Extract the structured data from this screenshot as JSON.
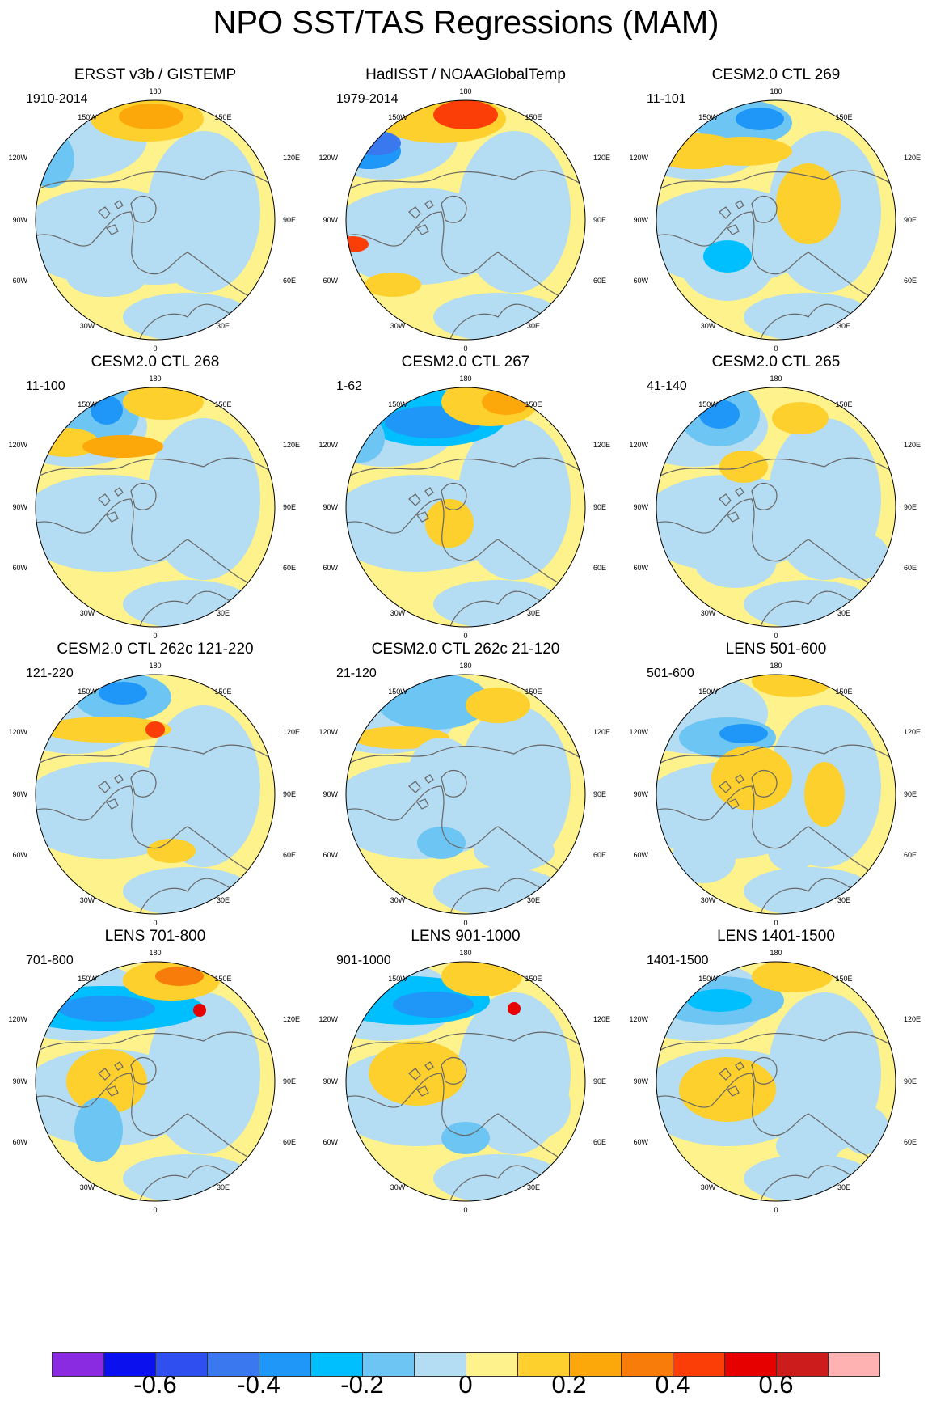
{
  "title": "NPO SST/TAS Regressions (MAM)",
  "longitude_labels": {
    "top": "180",
    "upper_left": "150W",
    "upper_right": "150E",
    "left_upper": "120W",
    "right_upper": "120E",
    "left": "90W",
    "right": "90E",
    "left_lower": "60W",
    "right_lower": "60E",
    "lower_left": "30W",
    "lower_right": "30E",
    "bottom": "0"
  },
  "panels": [
    {
      "title": "ERSST v3b / GISTEMP",
      "period": "1910-2014"
    },
    {
      "title": "HadISST / NOAAGlobalTemp",
      "period": "1979-2014"
    },
    {
      "title": "CESM2.0 CTL 269",
      "period": "11-101"
    },
    {
      "title": "CESM2.0 CTL 268",
      "period": "11-100"
    },
    {
      "title": "CESM2.0 CTL 267",
      "period": "1-62"
    },
    {
      "title": "CESM2.0 CTL 265",
      "period": "41-140"
    },
    {
      "title": "CESM2.0 CTL 262c 121-220",
      "period": "121-220"
    },
    {
      "title": "CESM2.0 CTL 262c 21-120",
      "period": "21-120"
    },
    {
      "title": "LENS 501-600",
      "period": "501-600"
    },
    {
      "title": "LENS 701-800",
      "period": "701-800"
    },
    {
      "title": "LENS 901-1000",
      "period": "901-1000"
    },
    {
      "title": "LENS 1401-1500",
      "period": "1401-1500"
    }
  ],
  "colorbar": {
    "colors": [
      "#8a2be2",
      "#0a10ee",
      "#2f4ff0",
      "#3a78ef",
      "#1e97f8",
      "#00bfff",
      "#6cc5f2",
      "#b4dcf2",
      "#fdf28c",
      "#fdd02e",
      "#fda80a",
      "#f87c0a",
      "#fb3e07",
      "#e60000",
      "#cc1c1c",
      "#feb2b2"
    ],
    "labels": [
      "-0.6",
      "-0.4",
      "-0.2",
      "0",
      "0.2",
      "0.4",
      "0.6"
    ]
  },
  "icons": {
    "land_outline": "coastline-contour-icon"
  }
}
